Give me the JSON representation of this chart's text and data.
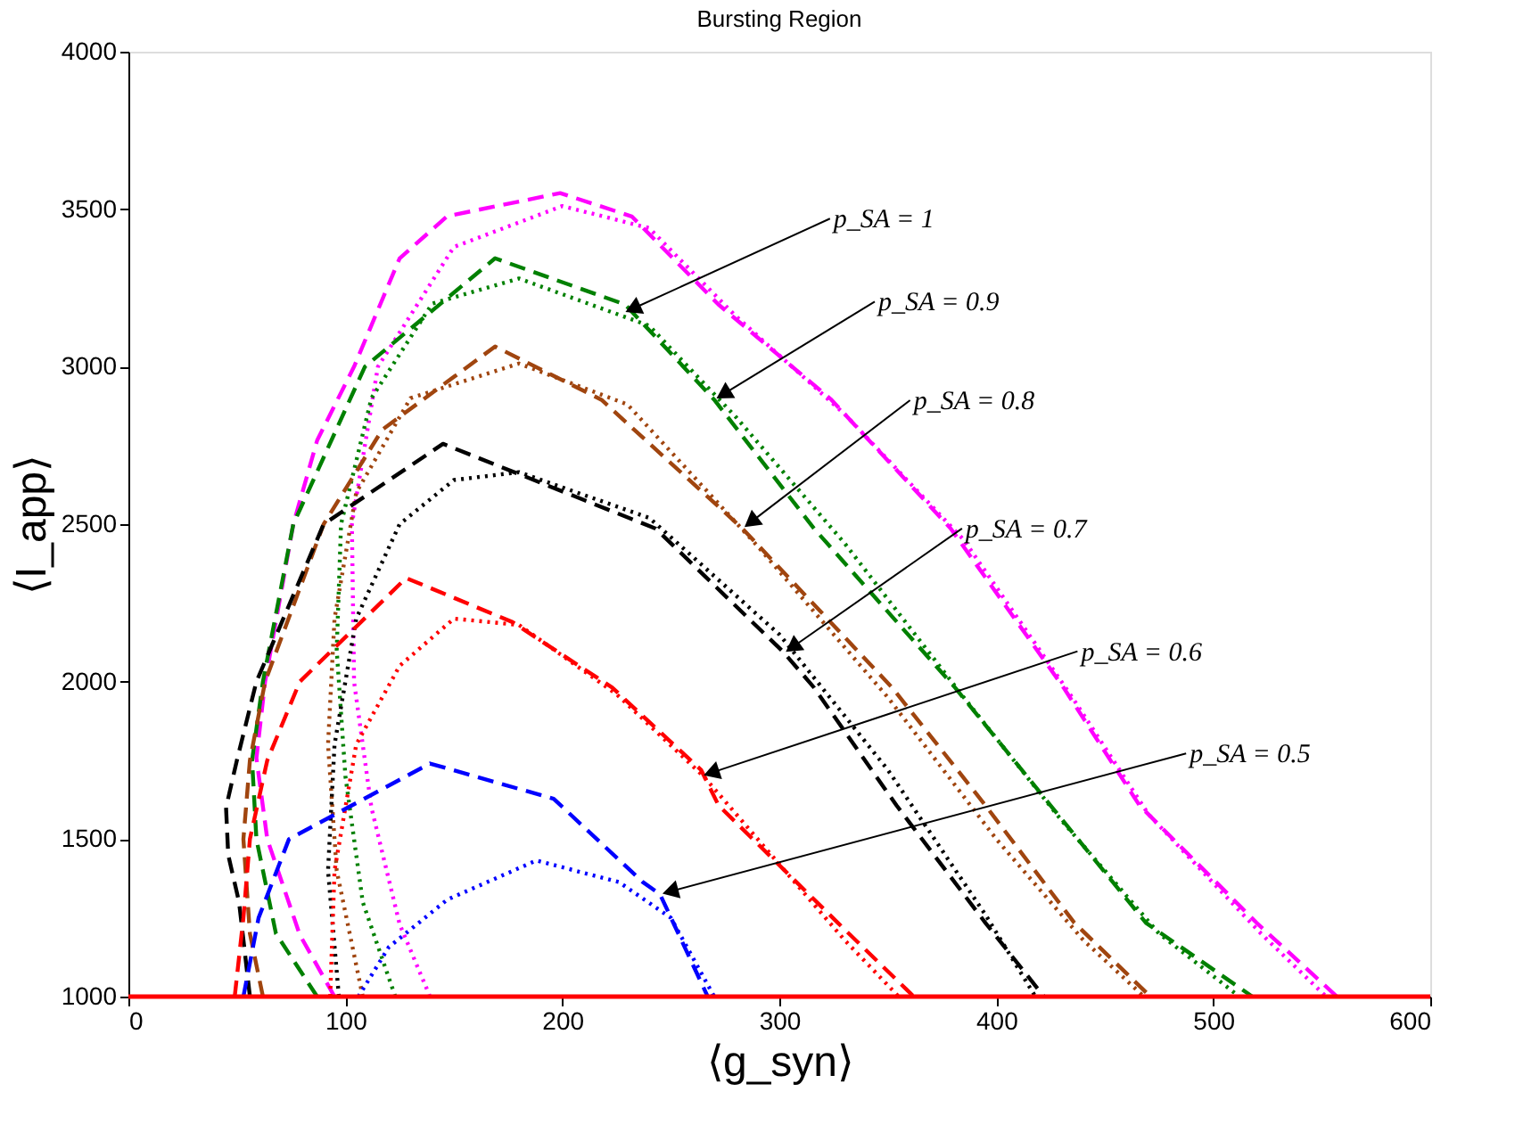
{
  "chart_data": {
    "type": "line",
    "title": "Bursting Region",
    "xlabel": "⟨g_syn⟩",
    "ylabel": "⟨I_app⟩",
    "xlim": [
      0,
      600
    ],
    "xticks": [
      0,
      100,
      200,
      300,
      400,
      500,
      600
    ],
    "ylim": [
      1000,
      4000
    ],
    "yticks": [
      1000,
      1500,
      2000,
      2500,
      3000,
      3500,
      4000
    ],
    "grid": false,
    "marker": "none",
    "ref_lines": [
      {
        "axis": "y",
        "value": 1000,
        "color": "#ff0000",
        "line_style": "solid"
      }
    ],
    "annotations": [
      {
        "text": "p_SA = 1",
        "x": 228,
        "y": 3170
      },
      {
        "text": "p_SA = 0.9",
        "x": 270,
        "y": 2895
      },
      {
        "text": "p_SA = 0.8",
        "x": 283,
        "y": 2486
      },
      {
        "text": "p_SA = 0.7",
        "x": 302,
        "y": 2090
      },
      {
        "text": "p_SA = 0.6",
        "x": 264,
        "y": 1700
      },
      {
        "text": "p_SA = 0.5",
        "x": 245,
        "y": 1325
      }
    ],
    "series": [
      {
        "color": "#ff00ff",
        "line_style": "dashed",
        "x": [
          95,
          79,
          64,
          59,
          63,
          76,
          87,
          104,
          125,
          147,
          199,
          232,
          272,
          324,
          379,
          431,
          466,
          520,
          557
        ],
        "values": [
          1000,
          1196,
          1500,
          1757,
          2000,
          2500,
          2766,
          3000,
          3344,
          3478,
          3551,
          3477,
          3197,
          2895,
          2486,
          1981,
          1607,
          1234,
          1000
        ]
      },
      {
        "color": "#ff00ff",
        "line_style": "dotted",
        "x": [
          139,
          125,
          112,
          104,
          103,
          115,
          150,
          200,
          240,
          280,
          330,
          385,
          435,
          470,
          522,
          552
        ],
        "values": [
          1000,
          1230,
          1600,
          2000,
          2500,
          3000,
          3380,
          3510,
          3440,
          3160,
          2850,
          2450,
          1950,
          1580,
          1200,
          1000
        ]
      },
      {
        "color": "#008000",
        "line_style": "dashed",
        "x": [
          87,
          68,
          59,
          57,
          62,
          76,
          109,
          169,
          229,
          270,
          316,
          381,
          425,
          469,
          518
        ],
        "values": [
          1000,
          1200,
          1500,
          1750,
          2000,
          2500,
          3000,
          3344,
          3197,
          2895,
          2486,
          1981,
          1607,
          1234,
          1000
        ]
      },
      {
        "color": "#008000",
        "line_style": "dotted",
        "x": [
          123,
          108,
          100,
          96,
          98,
          112,
          140,
          180,
          240,
          280,
          330,
          385,
          430,
          475,
          512
        ],
        "values": [
          1000,
          1300,
          1700,
          2100,
          2500,
          2900,
          3200,
          3280,
          3130,
          2840,
          2440,
          1950,
          1560,
          1200,
          1000
        ]
      },
      {
        "color": "#a0450f",
        "line_style": "dashed",
        "x": [
          62,
          56,
          53,
          56,
          63,
          90,
          117,
          169,
          218,
          283,
          352,
          395,
          436,
          471
        ],
        "values": [
          1000,
          1200,
          1500,
          1750,
          2000,
          2500,
          2800,
          3064,
          2895,
          2486,
          1981,
          1607,
          1234,
          1000
        ]
      },
      {
        "color": "#a0450f",
        "line_style": "dotted",
        "x": [
          108,
          96,
          92,
          95,
          105,
          130,
          180,
          230,
          290,
          350,
          400,
          440,
          468
        ],
        "values": [
          1000,
          1400,
          1800,
          2200,
          2600,
          2900,
          3010,
          2880,
          2430,
          1950,
          1500,
          1180,
          1000
        ]
      },
      {
        "color": "#000000",
        "line_style": "dashed",
        "x": [
          56,
          51,
          46,
          45,
          50,
          59,
          90,
          145,
          243,
          302,
          316,
          354,
          395,
          422
        ],
        "values": [
          1000,
          1300,
          1450,
          1600,
          1750,
          2000,
          2500,
          2755,
          2486,
          2093,
          1981,
          1607,
          1234,
          1000
        ]
      },
      {
        "color": "#000000",
        "line_style": "dotted",
        "x": [
          97,
          92,
          95,
          105,
          125,
          150,
          180,
          240,
          300,
          350,
          395,
          418
        ],
        "values": [
          1000,
          1400,
          1800,
          2200,
          2500,
          2640,
          2665,
          2520,
          2150,
          1720,
          1260,
          1000
        ]
      },
      {
        "color": "#ff0000",
        "line_style": "dashed",
        "x": [
          49,
          53,
          56,
          64,
          79,
          128,
          177,
          223,
          264,
          272,
          327,
          362
        ],
        "values": [
          1000,
          1250,
          1500,
          1750,
          2000,
          2329,
          2189,
          1981,
          1719,
          1607,
          1234,
          1000
        ]
      },
      {
        "color": "#ff0000",
        "line_style": "dotted",
        "x": [
          93,
          95,
          105,
          125,
          150,
          180,
          225,
          265,
          300,
          330,
          355
        ],
        "values": [
          1000,
          1400,
          1800,
          2050,
          2200,
          2180,
          1960,
          1700,
          1420,
          1180,
          1000
        ]
      },
      {
        "color": "#0000ff",
        "line_style": "dashed",
        "x": [
          53,
          60,
          74,
          139,
          196,
          237,
          245,
          267
        ],
        "values": [
          1000,
          1250,
          1500,
          1740,
          1628,
          1364,
          1325,
          1000
        ]
      },
      {
        "color": "#0000ff",
        "line_style": "dotted",
        "x": [
          106,
          120,
          147,
          188,
          226,
          250,
          270
        ],
        "values": [
          1000,
          1157,
          1308,
          1432,
          1364,
          1250,
          1000
        ]
      }
    ]
  }
}
